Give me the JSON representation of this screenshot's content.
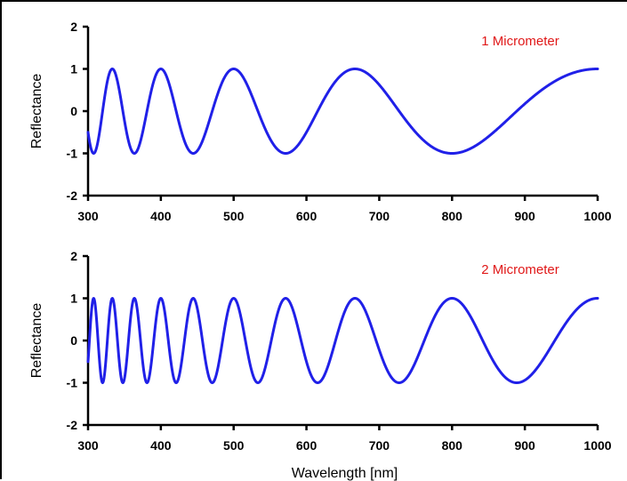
{
  "chart_data": [
    {
      "type": "line",
      "annotation": "1 Micrometer",
      "ylabel": "Reflectance",
      "xlabel": "",
      "xlim": [
        300,
        1000
      ],
      "ylim": [
        -2,
        2
      ],
      "xticks": [
        "300",
        "400",
        "500",
        "600",
        "700",
        "800",
        "900",
        "1000"
      ],
      "yticks": [
        "-2",
        "-1",
        "0",
        "1",
        "2"
      ],
      "grid": false,
      "thickness_nm": 1000,
      "series": [
        {
          "function": "cos(4*pi*n*d/lambda)",
          "x_range": [
            300,
            1000
          ],
          "color": "#2020e8",
          "peaks_x": [
            333,
            400,
            500,
            667,
            1000
          ],
          "troughs_x": [
            308,
            364,
            444,
            571,
            800
          ]
        }
      ]
    },
    {
      "type": "line",
      "annotation": "2 Micrometer",
      "ylabel": "Reflectance",
      "xlabel": "Wavelength [nm]",
      "xlim": [
        300,
        1000
      ],
      "ylim": [
        -2,
        2
      ],
      "xticks": [
        "300",
        "400",
        "500",
        "600",
        "700",
        "800",
        "900",
        "1000"
      ],
      "yticks": [
        "-2",
        "-1",
        "0",
        "1",
        "2"
      ],
      "grid": false,
      "thickness_nm": 2000,
      "series": [
        {
          "function": "cos(4*pi*n*d/lambda)",
          "x_range": [
            300,
            1000
          ],
          "color": "#2020e8",
          "peaks_x": [
            308,
            333,
            364,
            400,
            444,
            500,
            571,
            667,
            800,
            1000
          ],
          "troughs_x": [
            320,
            348,
            381,
            421,
            471,
            533,
            615,
            727,
            889
          ]
        }
      ]
    }
  ],
  "colors": {
    "line": "#2020e8",
    "annotation": "#e01818",
    "axis": "#000000"
  }
}
